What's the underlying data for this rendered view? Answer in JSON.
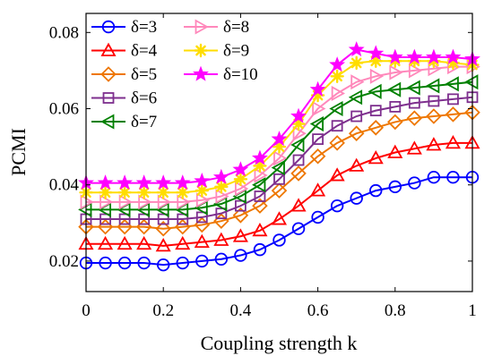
{
  "chart_data": {
    "type": "line",
    "title": "",
    "xlabel": "Coupling strength k",
    "ylabel": "PCMI",
    "xlim": [
      0,
      1
    ],
    "ylim": [
      0.012,
      0.085
    ],
    "xticks": [
      0,
      0.2,
      0.4,
      0.6,
      0.8,
      1
    ],
    "xtick_labels": [
      "0",
      "0.2",
      "0.4",
      "0.6",
      "0.8",
      "1"
    ],
    "yticks": [
      0.02,
      0.04,
      0.06,
      0.08
    ],
    "ytick_labels": [
      "0.02",
      "0.04",
      "0.06",
      "0.08"
    ],
    "grid": false,
    "legend_placement": "top-left",
    "x": [
      0,
      0.05,
      0.1,
      0.15,
      0.2,
      0.25,
      0.3,
      0.35,
      0.4,
      0.45,
      0.5,
      0.55,
      0.6,
      0.65,
      0.7,
      0.75,
      0.8,
      0.85,
      0.9,
      0.95,
      1.0
    ],
    "series": [
      {
        "name": "δ=3",
        "color": "#0000ff",
        "marker": "circle",
        "values": [
          0.0195,
          0.0195,
          0.0195,
          0.0195,
          0.019,
          0.0195,
          0.02,
          0.0205,
          0.0215,
          0.023,
          0.0255,
          0.0285,
          0.0315,
          0.0345,
          0.0365,
          0.0385,
          0.0395,
          0.0405,
          0.042,
          0.042,
          0.042
        ]
      },
      {
        "name": "δ=4",
        "color": "#ff0000",
        "marker": "triangle-up",
        "values": [
          0.0245,
          0.0245,
          0.0245,
          0.0245,
          0.024,
          0.0245,
          0.025,
          0.0255,
          0.0265,
          0.028,
          0.031,
          0.0345,
          0.0385,
          0.0425,
          0.045,
          0.047,
          0.0485,
          0.0495,
          0.0505,
          0.051,
          0.051
        ]
      },
      {
        "name": "δ=5",
        "color": "#ee7700",
        "marker": "diamond",
        "values": [
          0.029,
          0.029,
          0.029,
          0.029,
          0.0285,
          0.029,
          0.0295,
          0.0305,
          0.032,
          0.0345,
          0.0385,
          0.043,
          0.0475,
          0.051,
          0.0535,
          0.055,
          0.0565,
          0.0575,
          0.058,
          0.0585,
          0.059
        ]
      },
      {
        "name": "δ=6",
        "color": "#7e2f8e",
        "marker": "square",
        "values": [
          0.031,
          0.031,
          0.031,
          0.031,
          0.031,
          0.031,
          0.0315,
          0.0325,
          0.0345,
          0.037,
          0.0415,
          0.0465,
          0.052,
          0.0555,
          0.058,
          0.0595,
          0.0605,
          0.0615,
          0.062,
          0.0625,
          0.063
        ]
      },
      {
        "name": "δ=7",
        "color": "#008000",
        "marker": "triangle-left",
        "values": [
          0.0335,
          0.0335,
          0.0335,
          0.0335,
          0.0335,
          0.0335,
          0.034,
          0.035,
          0.037,
          0.04,
          0.0445,
          0.0505,
          0.056,
          0.06,
          0.063,
          0.0645,
          0.065,
          0.0655,
          0.066,
          0.0665,
          0.067
        ]
      },
      {
        "name": "δ=8",
        "color": "#ff88bb",
        "marker": "triangle-right",
        "values": [
          0.0355,
          0.0355,
          0.0355,
          0.0355,
          0.0355,
          0.0355,
          0.036,
          0.037,
          0.039,
          0.0425,
          0.047,
          0.0535,
          0.06,
          0.064,
          0.067,
          0.0685,
          0.0695,
          0.07,
          0.0705,
          0.071,
          0.071
        ]
      },
      {
        "name": "δ=9",
        "color": "#ffdd00",
        "marker": "asterisk",
        "values": [
          0.038,
          0.038,
          0.038,
          0.038,
          0.038,
          0.038,
          0.0385,
          0.0395,
          0.0415,
          0.045,
          0.05,
          0.056,
          0.0635,
          0.0685,
          0.072,
          0.0725,
          0.0725,
          0.0725,
          0.0725,
          0.072,
          0.0715
        ]
      },
      {
        "name": "δ=10",
        "color": "#ff00ff",
        "marker": "star",
        "values": [
          0.0405,
          0.0405,
          0.0405,
          0.0405,
          0.0405,
          0.0405,
          0.041,
          0.042,
          0.044,
          0.047,
          0.052,
          0.058,
          0.065,
          0.0715,
          0.0755,
          0.0745,
          0.0735,
          0.0735,
          0.0735,
          0.0735,
          0.073
        ]
      }
    ]
  }
}
